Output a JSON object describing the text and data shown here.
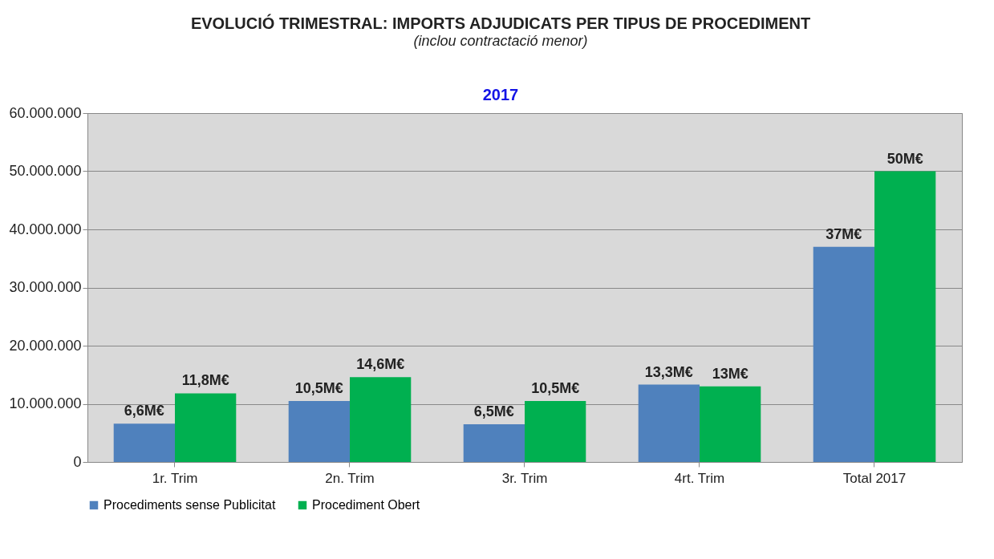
{
  "chart_data": {
    "type": "bar",
    "title": "EVOLUCIÓ TRIMESTRAL: IMPORTS ADJUDICATS PER TIPUS DE PROCEDIMENT",
    "subtitle": "(inclou contractació menor)",
    "annotations": [
      "2017"
    ],
    "categories": [
      "1r. Trim",
      "2n. Trim",
      "3r. Trim",
      "4rt. Trim",
      "Total 2017"
    ],
    "series": [
      {
        "name": "Procediments sense Publicitat",
        "color": "#4f81bd",
        "values": [
          6600000,
          10500000,
          6500000,
          13300000,
          37000000
        ],
        "value_labels": [
          "6,6M€",
          "10,5M€",
          "6,5M€",
          "13,3M€",
          "37M€"
        ]
      },
      {
        "name": "Procediment Obert",
        "color": "#00b050",
        "values": [
          11800000,
          14600000,
          10500000,
          13000000,
          50000000
        ],
        "value_labels": [
          "11,8M€",
          "14,6M€",
          "10,5M€",
          "13M€",
          "50M€"
        ]
      }
    ],
    "ylim": [
      0,
      60000000
    ],
    "yticks": [
      {
        "value": 0,
        "label": "0"
      },
      {
        "value": 10000000,
        "label": "10.000.000"
      },
      {
        "value": 20000000,
        "label": "20.000.000"
      },
      {
        "value": 30000000,
        "label": "30.000.000"
      },
      {
        "value": 40000000,
        "label": "40.000.000"
      },
      {
        "value": 50000000,
        "label": "50.000.000"
      },
      {
        "value": 60000000,
        "label": "60.000.000"
      }
    ],
    "grid": "y",
    "legend": "bottom"
  }
}
